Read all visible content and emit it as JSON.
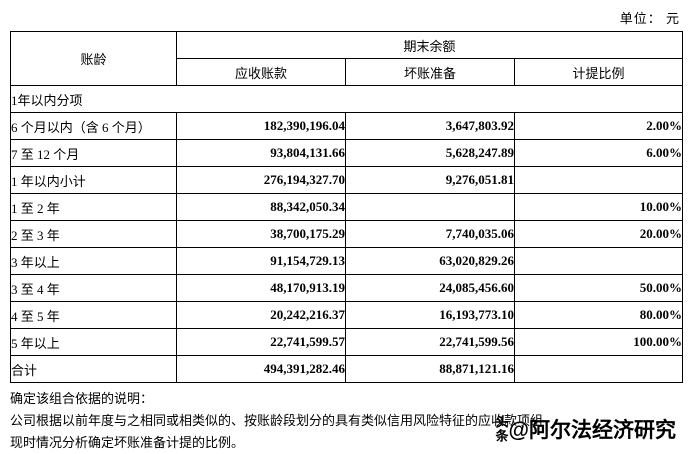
{
  "unit_label": "单位： 元",
  "table": {
    "header": {
      "aging": "账龄",
      "balance_group": "期末余额",
      "receivables": "应收账款",
      "bad_debt": "坏账准备",
      "provision_ratio": "计提比例"
    },
    "rows": [
      {
        "label": "1年以内分项",
        "span_all": true
      },
      {
        "label": "6 个月以内（含 6 个月）",
        "receivables": "182,390,196.04",
        "bad_debt": "3,647,803.92",
        "ratio": "2.00%"
      },
      {
        "label": "7 至 12 个月",
        "receivables": "93,804,131.66",
        "bad_debt": "5,628,247.89",
        "ratio": "6.00%"
      },
      {
        "label": "1 年以内小计",
        "receivables": "276,194,327.70",
        "bad_debt": "9,276,051.81",
        "ratio": ""
      },
      {
        "label": "1 至 2 年",
        "receivables": "88,342,050.34",
        "bad_debt": "",
        "ratio": "10.00%"
      },
      {
        "label": "2 至 3 年",
        "receivables": "38,700,175.29",
        "bad_debt": "7,740,035.06",
        "ratio": "20.00%"
      },
      {
        "label": "3 年以上",
        "receivables": "91,154,729.13",
        "bad_debt": "63,020,829.26",
        "ratio": ""
      },
      {
        "label": "3 至 4 年",
        "receivables": "48,170,913.19",
        "bad_debt": "24,085,456.60",
        "ratio": "50.00%"
      },
      {
        "label": "4 至 5 年",
        "receivables": "20,242,216.37",
        "bad_debt": "16,193,773.10",
        "ratio": "80.00%"
      },
      {
        "label": "5 年以上",
        "receivables": "22,741,599.57",
        "bad_debt": "22,741,599.56",
        "ratio": "100.00%"
      },
      {
        "label": "合计",
        "receivables": "494,391,282.46",
        "bad_debt": "88,871,121.16",
        "ratio": ""
      }
    ]
  },
  "notes": {
    "line1": "确定该组合依据的说明：",
    "line2": "公司根据以前年度与之相同或相类似的、按账龄段划分的具有类似信用风险特征的应收款项组",
    "line3": "现时情况分析确定坏账准备计提的比例。"
  },
  "watermark": {
    "vertical_text": "头条",
    "handle": "@阿尔法经济研究"
  }
}
